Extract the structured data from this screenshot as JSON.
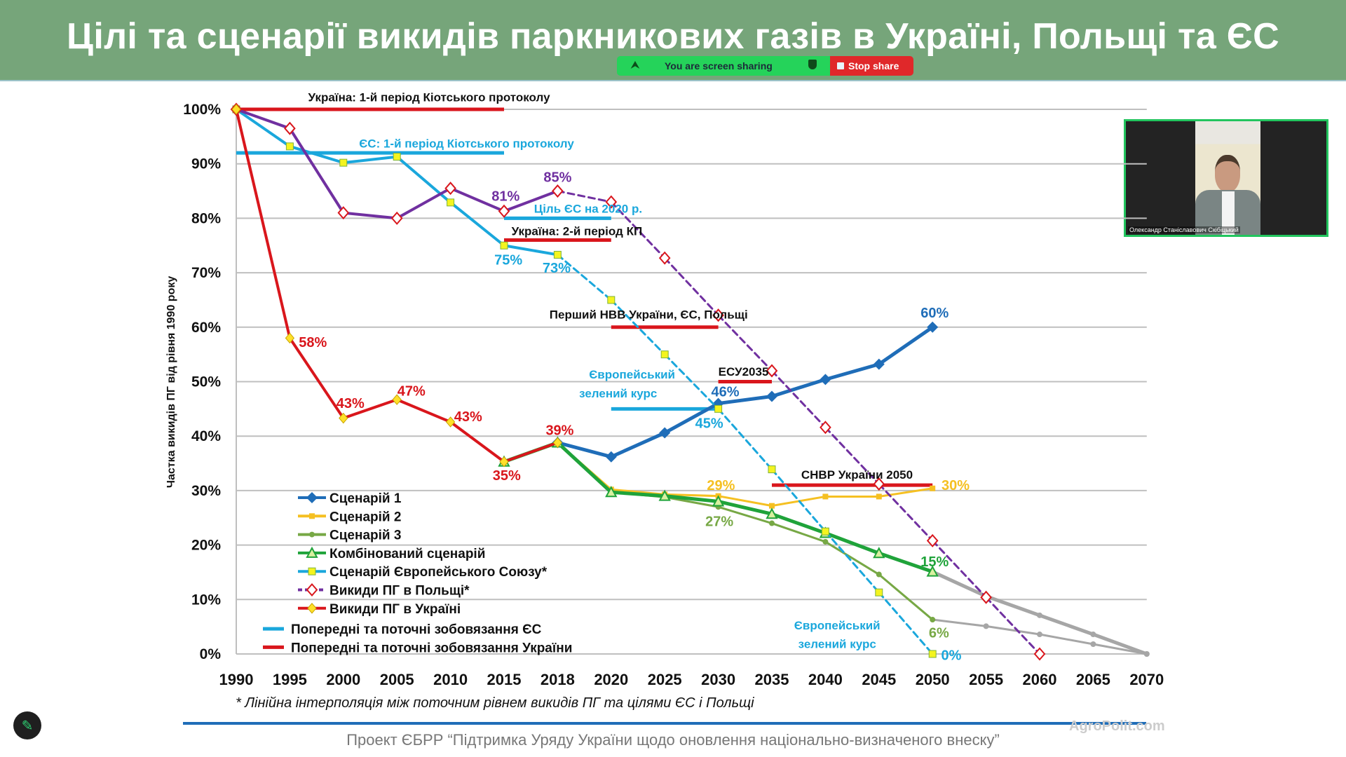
{
  "header": {
    "title": "Цілі та сценарії викидів паркникових газів в Україні, Польщі та ЄС"
  },
  "share_bar": {
    "status": "You are screen sharing",
    "stop_label": "Stop share"
  },
  "webcam": {
    "participant": "Олександр Станіславович Скібіцький"
  },
  "footnote": "* Лінійна інтерполяція між поточним рівнем викидів ПГ та цілями ЄС і Польщі",
  "footer": "Проект ЄБРР “Підтримка Уряду України щодо оновлення національно-визначеного внеску”",
  "watermark": "AgroPolit.com",
  "colors": {
    "header": "#76a57a",
    "ukraine": "#d9161c",
    "eu": "#1aa7dc",
    "poland": "#7030a0",
    "scenario1": "#1f6db8",
    "scenario2": "#f5c022",
    "scenario3": "#77a845",
    "combined": "#1fa33a",
    "grey": "#a6a6a6"
  },
  "chart_data": {
    "type": "line",
    "ylabel": "Частка викидів ПГ від рівня 1990 року",
    "ylim": [
      0,
      100
    ],
    "yticks": [
      "0%",
      "10%",
      "20%",
      "30%",
      "40%",
      "50%",
      "60%",
      "70%",
      "80%",
      "90%",
      "100%"
    ],
    "categories": [
      "1990",
      "1995",
      "2000",
      "2005",
      "2010",
      "2015",
      "2018",
      "2020",
      "2025",
      "2030",
      "2035",
      "2040",
      "2045",
      "2050",
      "2055",
      "2060",
      "2065",
      "2070"
    ],
    "series": [
      {
        "name": "Сценарій 1",
        "color": "#1f6db8",
        "marker": "diamond-filled",
        "width": 5,
        "values": [
          null,
          null,
          null,
          null,
          null,
          null,
          38.8,
          36.2,
          40.6,
          46,
          47.3,
          50.4,
          53.2,
          60,
          null,
          null,
          null,
          null
        ]
      },
      {
        "name": "Сценарій 2",
        "color": "#f5c022",
        "marker": "square-small",
        "width": 3,
        "values": [
          null,
          null,
          null,
          null,
          null,
          null,
          38.8,
          30.2,
          29.3,
          29,
          27.2,
          28.9,
          28.9,
          30.4,
          null,
          null,
          null,
          null
        ]
      },
      {
        "name": "Сценарій 3",
        "color": "#77a845",
        "marker": "circle",
        "width": 3,
        "values": [
          null,
          null,
          null,
          null,
          null,
          null,
          38.8,
          29.7,
          28.8,
          27,
          24,
          20.6,
          14.6,
          6.3,
          5.1,
          3.6,
          1.8,
          0
        ],
        "grey_after": "2050"
      },
      {
        "name": "Комбінований сценарій",
        "color": "#1fa33a",
        "marker": "triangle",
        "width": 5,
        "values": [
          null,
          null,
          null,
          null,
          null,
          35.3,
          38.8,
          29.7,
          29,
          28,
          25.7,
          22.2,
          18.5,
          15.1,
          10.6,
          7.1,
          3.6,
          0
        ],
        "grey_after": "2050"
      },
      {
        "name": "Сценарій Європейського Союзу*",
        "color": "#1aa7dc",
        "marker": "square",
        "width": 4,
        "values": [
          100,
          93.2,
          90.2,
          91.3,
          82.9,
          75,
          73.3,
          65,
          55,
          45,
          33.9,
          22.5,
          11.3,
          0,
          null,
          null,
          null,
          null
        ],
        "dashed_after": "2018"
      },
      {
        "name": "Викиди ПГ в Польщі*",
        "color": "#7030a0",
        "marker": "diamond-hollow",
        "width": 4,
        "values": [
          100,
          96.5,
          81,
          80,
          85.5,
          81.3,
          85,
          83,
          72.7,
          62.2,
          52,
          41.6,
          31.2,
          20.8,
          10.4,
          0,
          null,
          null
        ],
        "dashed_after": "2018"
      },
      {
        "name": "Викиди ПГ в Україні",
        "color": "#d9161c",
        "marker": "diamond-yellow",
        "width": 4,
        "values": [
          100,
          58,
          43.3,
          46.7,
          42.6,
          35.3,
          38.8,
          null,
          null,
          null,
          null,
          null,
          null,
          null,
          null,
          null,
          null,
          null
        ]
      }
    ],
    "commitments": [
      {
        "name": "Попередні та поточні зобовязання ЄС",
        "color": "#1aa7dc",
        "segments": [
          [
            "1990",
            "2015",
            92
          ],
          [
            "2015",
            "2020",
            80
          ],
          [
            "2020",
            "2030",
            45
          ]
        ]
      },
      {
        "name": "Попередні та поточні зобовязання України",
        "color": "#d9161c",
        "segments": [
          [
            "1990",
            "2015",
            100
          ],
          [
            "2015",
            "2020",
            76
          ],
          [
            "2020",
            "2030",
            60
          ],
          [
            "2030",
            "2035",
            50
          ],
          [
            "2035",
            "2050",
            31
          ]
        ]
      }
    ],
    "annotations": [
      {
        "text": "Україна: 1-й період Кіотського протоколу",
        "color": "#111111",
        "x": 3.6,
        "y": 102.4
      },
      {
        "text": "ЄС: 1-й період Кіотського протоколу",
        "color": "#1aa7dc",
        "x": 4.3,
        "y": 93.9
      },
      {
        "text": "81%",
        "color": "#7030a0",
        "x": 5.03,
        "y": 84.1
      },
      {
        "text": "85%",
        "color": "#7030a0",
        "x": 6.0,
        "y": 87.6
      },
      {
        "text": "Ціль ЄС на 2020 р.",
        "color": "#1aa7dc",
        "x": 6.57,
        "y": 81.9
      },
      {
        "text": "Україна: 2-й період КП",
        "color": "#111111",
        "x": 6.36,
        "y": 77.8
      },
      {
        "text": "75%",
        "color": "#1aa7dc",
        "x": 5.08,
        "y": 72.4
      },
      {
        "text": "73%",
        "color": "#1aa7dc",
        "x": 5.98,
        "y": 70.9
      },
      {
        "text": "Перший НВВ України, ЄС, Польщі",
        "color": "#111111",
        "x": 7.7,
        "y": 62.5
      },
      {
        "text": "60%",
        "color": "#1f6db8",
        "x": 13.04,
        "y": 62.7
      },
      {
        "text": "58%",
        "color": "#d9161c",
        "x": 1.43,
        "y": 57.3
      },
      {
        "text": "43%",
        "color": "#d9161c",
        "x": 2.13,
        "y": 46.1
      },
      {
        "text": "47%",
        "color": "#d9161c",
        "x": 3.27,
        "y": 48.3
      },
      {
        "text": "43%",
        "color": "#d9161c",
        "x": 4.33,
        "y": 43.6
      },
      {
        "text": "35%",
        "color": "#d9161c",
        "x": 5.05,
        "y": 32.8
      },
      {
        "text": "39%",
        "color": "#d9161c",
        "x": 6.04,
        "y": 41.1
      },
      {
        "text": "Європейський",
        "color": "#1aa7dc",
        "x": 7.39,
        "y": 51.5
      },
      {
        "text": "зелений курс",
        "color": "#1aa7dc",
        "x": 7.13,
        "y": 48.0
      },
      {
        "text": "ЕСУ2035",
        "color": "#111111",
        "x": 9.47,
        "y": 52.0
      },
      {
        "text": "46%",
        "color": "#1f6db8",
        "x": 9.13,
        "y": 48.2
      },
      {
        "text": "45%",
        "color": "#1aa7dc",
        "x": 8.83,
        "y": 42.4
      },
      {
        "text": "29%",
        "color": "#f5c022",
        "x": 9.05,
        "y": 31.0
      },
      {
        "text": "СНВР України 2050",
        "color": "#111111",
        "x": 11.59,
        "y": 33.1
      },
      {
        "text": "30%",
        "color": "#f5c022",
        "x": 13.43,
        "y": 31.0
      },
      {
        "text": "27%",
        "color": "#77a845",
        "x": 9.02,
        "y": 24.4
      },
      {
        "text": "15%",
        "color": "#1fa33a",
        "x": 13.04,
        "y": 17.0
      },
      {
        "text": "Європейський",
        "color": "#1aa7dc",
        "x": 11.22,
        "y": 5.4
      },
      {
        "text": "зелений курс",
        "color": "#1aa7dc",
        "x": 11.22,
        "y": 2.0
      },
      {
        "text": "6%",
        "color": "#77a845",
        "x": 13.12,
        "y": 3.9
      },
      {
        "text": "0%",
        "color": "#1aa7dc",
        "x": 13.35,
        "y": -0.2
      }
    ],
    "legend_position": "bottom-left"
  }
}
